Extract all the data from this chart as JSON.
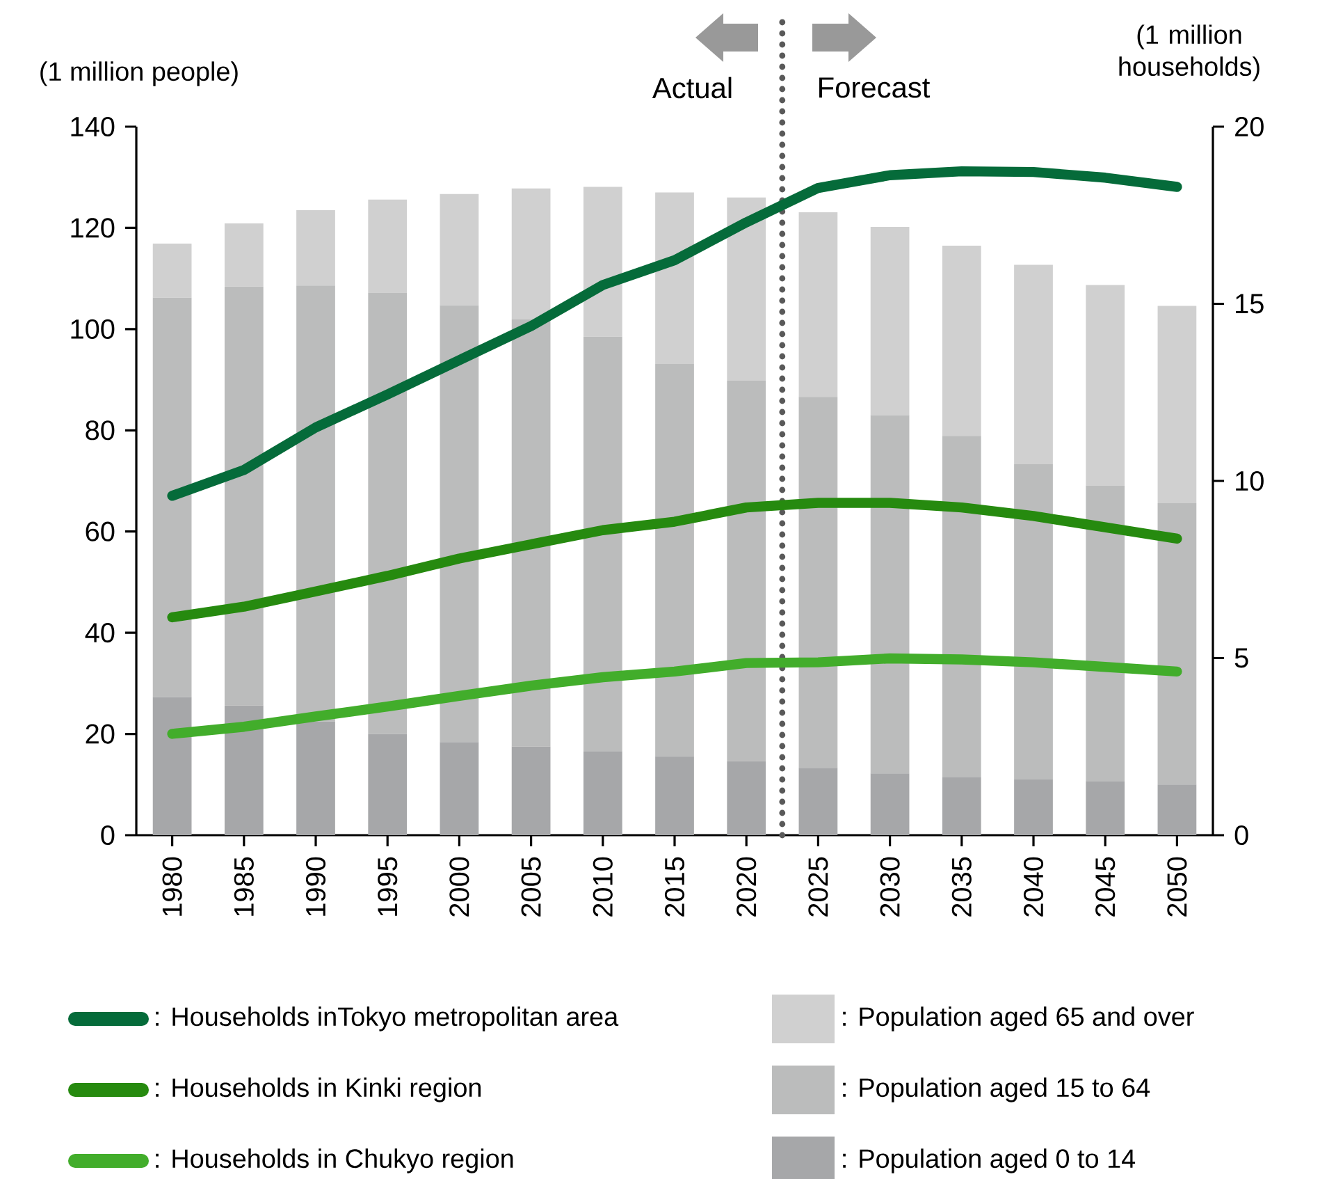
{
  "chart_data": {
    "type": "bar",
    "stacked": true,
    "ylabel": "(1 million people)",
    "y2label": "(1 million households)",
    "x": [
      1980,
      1985,
      1990,
      1995,
      2000,
      2005,
      2010,
      2015,
      2020,
      2025,
      2030,
      2035,
      2040,
      2045,
      2050
    ],
    "xlim": [
      1977.5,
      2052.5
    ],
    "xticks": [
      1980,
      1985,
      1990,
      1995,
      2000,
      2005,
      2010,
      2015,
      2020,
      2025,
      2030,
      2035,
      2040,
      2045,
      2050
    ],
    "ylim": [
      0,
      140
    ],
    "yticks": [
      0,
      20,
      40,
      60,
      80,
      100,
      120,
      140
    ],
    "y2lim": [
      0,
      20
    ],
    "y2ticks": [
      0,
      5,
      10,
      15,
      20
    ],
    "legend": "bottom",
    "ref_lines": [
      {
        "axis": "x",
        "value": 2022.5,
        "color": "#595959",
        "line_style": "dotted"
      }
    ],
    "annotations": [
      "Actual",
      "Forecast"
    ],
    "series": [
      {
        "name": ": Population aged 0 to 14",
        "color": "#a6a7a9",
        "values": [
          27.3,
          25.6,
          22.5,
          20.0,
          18.4,
          17.5,
          16.6,
          15.6,
          14.6,
          13.3,
          12.2,
          11.4,
          11.0,
          10.7,
          10.0
        ]
      },
      {
        "name": ": Population aged 15 to 64",
        "color": "#bbbcbc",
        "values": [
          78.9,
          82.8,
          86.1,
          87.2,
          86.3,
          84.4,
          81.9,
          77.5,
          75.2,
          73.3,
          70.8,
          67.5,
          62.3,
          58.4,
          55.6
        ]
      },
      {
        "name": ": Population aged 65 and over",
        "color": "#d0d0d0",
        "values": [
          10.7,
          12.5,
          14.9,
          18.4,
          22.0,
          25.9,
          29.6,
          33.9,
          36.2,
          36.5,
          37.2,
          37.6,
          39.4,
          39.6,
          39.0
        ]
      },
      {
        "name": ": Households inTokyo metropolitan area",
        "type": "line",
        "axis": "y2",
        "color": "#056b3a",
        "values": [
          9.58,
          10.31,
          11.51,
          12.44,
          13.41,
          14.37,
          15.53,
          16.23,
          17.3,
          18.27,
          18.63,
          18.74,
          18.72,
          18.56,
          18.3
        ]
      },
      {
        "name": ": Households in Kinki region",
        "type": "line",
        "axis": "y2",
        "color": "#268a0f",
        "values": [
          6.15,
          6.45,
          6.88,
          7.32,
          7.81,
          8.21,
          8.61,
          8.85,
          9.25,
          9.38,
          9.38,
          9.25,
          9.01,
          8.69,
          8.37
        ]
      },
      {
        "name": ": Households in Chukyo region",
        "type": "line",
        "axis": "y2",
        "color": "#42ad2b",
        "values": [
          2.86,
          3.06,
          3.35,
          3.63,
          3.93,
          4.22,
          4.46,
          4.62,
          4.86,
          4.88,
          4.99,
          4.96,
          4.88,
          4.75,
          4.62
        ]
      }
    ]
  }
}
